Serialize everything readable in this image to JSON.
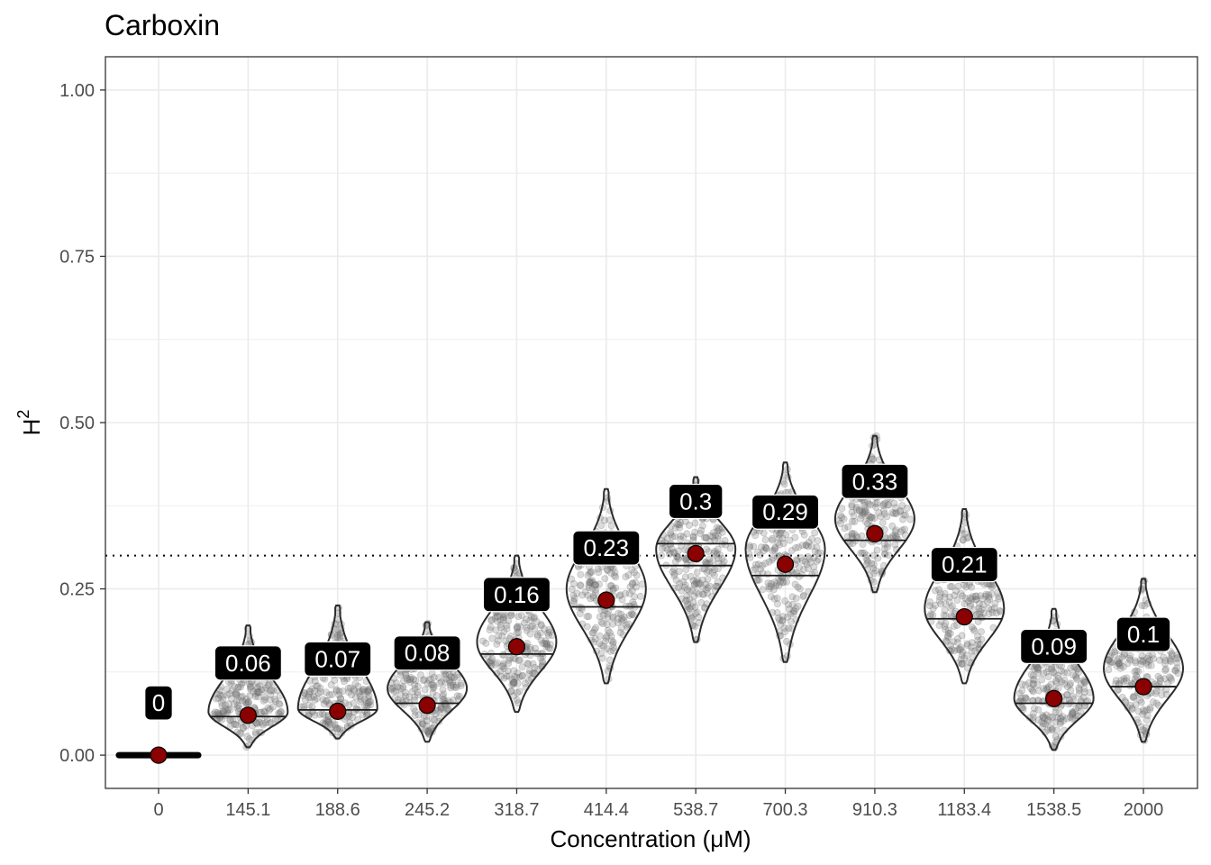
{
  "chart_data": {
    "type": "violin",
    "title": "Carboxin",
    "xlabel": "Concentration (μM)",
    "ylabel": "H",
    "ylabel_superscript": "2",
    "categories": [
      "0",
      "145.1",
      "188.6",
      "245.2",
      "318.7",
      "414.4",
      "538.7",
      "700.3",
      "910.3",
      "1183.4",
      "1538.5",
      "2000"
    ],
    "ylim": [
      -0.05,
      1.05
    ],
    "yticks": [
      0.0,
      0.25,
      0.5,
      0.75,
      1.0
    ],
    "ytick_labels": [
      "0.00",
      "0.25",
      "0.50",
      "0.75",
      "1.00"
    ],
    "threshold": 0.3,
    "threshold_style": "dotted",
    "grid": true,
    "mean_point_color": "#8b0000",
    "label_box_color": "#000000",
    "violins": [
      {
        "category": "0",
        "mean": 0,
        "label": "0",
        "min": 0,
        "max": 0,
        "mode": 0,
        "q_lo": 0,
        "q_hi": 0
      },
      {
        "category": "145.1",
        "mean": 0.06,
        "label": "0.06",
        "min": 0.012,
        "max": 0.195,
        "mode": 0.065,
        "q_lo": 0.058,
        "q_hi": 0.058
      },
      {
        "category": "188.6",
        "mean": 0.066,
        "label": "0.07",
        "min": 0.025,
        "max": 0.225,
        "mode": 0.07,
        "q_lo": 0.068,
        "q_hi": 0.068
      },
      {
        "category": "245.2",
        "mean": 0.075,
        "label": "0.08",
        "min": 0.02,
        "max": 0.2,
        "mode": 0.1,
        "q_lo": 0.078,
        "q_hi": 0.078
      },
      {
        "category": "318.7",
        "mean": 0.163,
        "label": "0.16",
        "min": 0.065,
        "max": 0.3,
        "mode": 0.17,
        "q_lo": 0.152,
        "q_hi": 0.152
      },
      {
        "category": "414.4",
        "mean": 0.233,
        "label": "0.23",
        "min": 0.108,
        "max": 0.4,
        "mode": 0.25,
        "q_lo": 0.223,
        "q_hi": 0.223
      },
      {
        "category": "538.7",
        "mean": 0.303,
        "label": "0.3",
        "min": 0.17,
        "max": 0.418,
        "mode": 0.31,
        "q_lo": 0.285,
        "q_hi": 0.318
      },
      {
        "category": "700.3",
        "mean": 0.287,
        "label": "0.29",
        "min": 0.14,
        "max": 0.44,
        "mode": 0.31,
        "q_lo": 0.27,
        "q_hi": 0.27
      },
      {
        "category": "910.3",
        "mean": 0.333,
        "label": "0.33",
        "min": 0.245,
        "max": 0.48,
        "mode": 0.355,
        "q_lo": 0.323,
        "q_hi": 0.323
      },
      {
        "category": "1183.4",
        "mean": 0.208,
        "label": "0.21",
        "min": 0.108,
        "max": 0.37,
        "mode": 0.22,
        "q_lo": 0.205,
        "q_hi": 0.205
      },
      {
        "category": "1538.5",
        "mean": 0.085,
        "label": "0.09",
        "min": 0.008,
        "max": 0.22,
        "mode": 0.085,
        "q_lo": 0.078,
        "q_hi": 0.078
      },
      {
        "category": "2000",
        "mean": 0.103,
        "label": "0.1",
        "min": 0.02,
        "max": 0.265,
        "mode": 0.13,
        "q_lo": 0.103,
        "q_hi": 0.103
      }
    ]
  }
}
